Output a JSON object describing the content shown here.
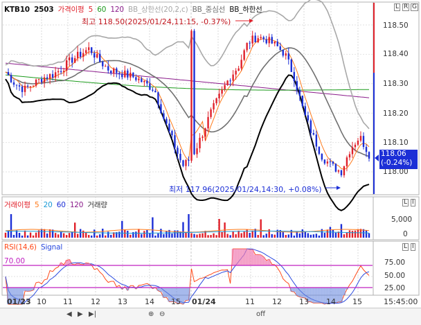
{
  "colors": {
    "price_up": "#e0202a",
    "price_down": "#1c2fd6",
    "ma5": "#ff7a1a",
    "ma60": "#1a9a1a",
    "ma120": "#8a1a8a",
    "bb_upper": "#a8a8a8",
    "bb_mid": "#707070",
    "bb_lower": "#000000",
    "rsi": "#ff4a1a",
    "signal": "#2a4adf",
    "rsi_band": "#c020c0"
  },
  "price_panel": {
    "symbol": "KTB10",
    "contract": "2503",
    "legend": [
      {
        "label": "가격이평",
        "color": "#e0202a"
      },
      {
        "label": "5",
        "color": "#e0202a"
      },
      {
        "label": "60",
        "color": "#1a9a1a"
      },
      {
        "label": "120",
        "color": "#8a1a8a"
      },
      {
        "label": "BB_상한선(20,2,c)",
        "color": "#a8a8a8"
      },
      {
        "label": "BB_중심선",
        "color": "#707070"
      },
      {
        "label": "BB_하한선",
        "color": "#000000"
      }
    ],
    "high_annotation": "최고 118.50(2025/01/24,11:15, -0.37%)",
    "low_annotation": "최저 117.96(2025/01/24,14:30, +0.08%)",
    "y_ticks": [
      "118.50",
      "118.40",
      "118.30",
      "118.20",
      "118.10",
      "118.00"
    ],
    "current_price": "118.06",
    "current_change": "(-0.24%)",
    "corner_badges": [
      "L",
      "R",
      "G"
    ]
  },
  "volume_panel": {
    "legend": [
      {
        "label": "거래이평",
        "color": "#333333"
      },
      {
        "label": "5",
        "color": "#ff7a1a"
      },
      {
        "label": "20",
        "color": "#1a9ad6"
      },
      {
        "label": "60",
        "color": "#1c2fd6"
      },
      {
        "label": "120",
        "color": "#8a1a8a"
      },
      {
        "label": "거래량",
        "color": "#333333"
      }
    ],
    "y_ticks": [
      "5,000",
      "0"
    ],
    "corner_badges": [
      "L",
      "I"
    ]
  },
  "rsi_panel": {
    "legend": [
      {
        "label": "RSI(14,6)",
        "color": "#ff4a1a"
      },
      {
        "label": "Signal",
        "color": "#2a4adf"
      }
    ],
    "band_label_upper": "70.00",
    "y_ticks": [
      "75.00",
      "50.00",
      "25.00"
    ],
    "corner_badges": [
      "L",
      "I"
    ]
  },
  "x_axis": {
    "labels": [
      "01/23",
      "10",
      "11",
      "12",
      "13",
      "14",
      "15",
      "01/24",
      "11",
      "12",
      "13",
      "14",
      "15"
    ],
    "time_label": "15:45:00"
  },
  "toolbar": {
    "items": [
      "◀",
      "▶",
      "▶|",
      "⊕",
      "⊖",
      "off"
    ]
  },
  "chart_data": {
    "type": "candlestick",
    "title": "",
    "interval": "intraday",
    "ylim": [
      117.93,
      118.53
    ],
    "y_ticks": [
      118.5,
      118.4,
      118.3,
      118.2,
      118.1,
      118.0
    ],
    "x_labels": [
      "01/23",
      "10",
      "11",
      "12",
      "13",
      "14",
      "15",
      "01/24",
      "11",
      "12",
      "13",
      "14",
      "15"
    ],
    "close_path_day1": [
      118.34,
      118.3,
      118.28,
      118.3,
      118.32,
      118.33,
      118.35,
      118.38,
      118.4,
      118.42,
      118.38,
      118.35,
      118.34,
      118.33,
      118.32,
      118.3,
      118.28,
      118.18,
      118.1,
      118.02
    ],
    "close_path_day2": [
      118.05,
      118.12,
      118.2,
      118.26,
      118.32,
      118.36,
      118.44,
      118.46,
      118.45,
      118.43,
      118.4,
      118.32,
      118.2,
      118.12,
      118.05,
      118.02,
      118.0,
      118.08,
      118.12,
      118.06
    ],
    "high": {
      "value": 118.5,
      "time": "2025/01/24,11:15",
      "change_pct": -0.37
    },
    "low": {
      "value": 117.96,
      "time": "2025/01/24,14:30",
      "change_pct": 0.08
    },
    "last": {
      "value": 118.06,
      "change_pct": -0.24
    },
    "rsi": {
      "upper_band": 70,
      "lower_band": 30,
      "ylim": [
        0,
        100
      ],
      "y_ticks": [
        75,
        50,
        25
      ]
    },
    "volume": {
      "y_ticks": [
        5000,
        0
      ]
    },
    "grid": true
  }
}
